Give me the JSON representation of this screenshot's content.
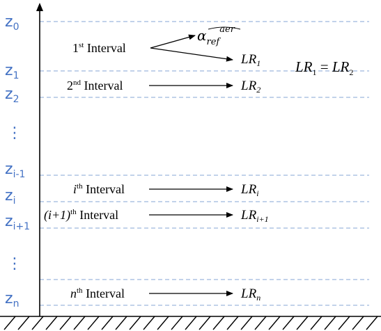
{
  "z_labels": {
    "z0": {
      "base": "z",
      "sub": "0"
    },
    "z1": {
      "base": "z",
      "sub": "1"
    },
    "z2": {
      "base": "z",
      "sub": "2"
    },
    "zim1": {
      "base": "z",
      "sub": "i-1"
    },
    "zi": {
      "base": "z",
      "sub": "i"
    },
    "zip1": {
      "base": "z",
      "sub": "i+1"
    },
    "zn": {
      "base": "z",
      "sub": "n"
    }
  },
  "vdots": "⋮",
  "intervals": {
    "first": {
      "index": "1",
      "sup": "st",
      "word": " Interval",
      "target": {
        "base": "LR",
        "sub": "1"
      }
    },
    "second": {
      "index": "2",
      "sup": "nd",
      "word": " Interval",
      "target": {
        "base": "LR",
        "sub": "2"
      }
    },
    "ith": {
      "index": "i",
      "sup": "th",
      "word": " Interval",
      "target": {
        "base": "LR",
        "sub": "i"
      }
    },
    "iplus1": {
      "index": "(i+1)",
      "sup": "th",
      "word": " Interval",
      "target": {
        "base": "LR",
        "sub": "i+1"
      }
    },
    "nth": {
      "index": "n",
      "sup": "th",
      "word": " Interval",
      "target": {
        "base": "LR",
        "sub": "n"
      }
    }
  },
  "alpha": {
    "base": "α",
    "sub": "ref",
    "sup": "aer"
  },
  "equation": {
    "lhs_base": "LR",
    "lhs_sub": "1",
    "op": " = ",
    "rhs_base": "LR",
    "rhs_sub": "2"
  },
  "colors": {
    "z_label": "#4472c4",
    "dashed_line": "#9db8dd",
    "axis": "#000000"
  }
}
